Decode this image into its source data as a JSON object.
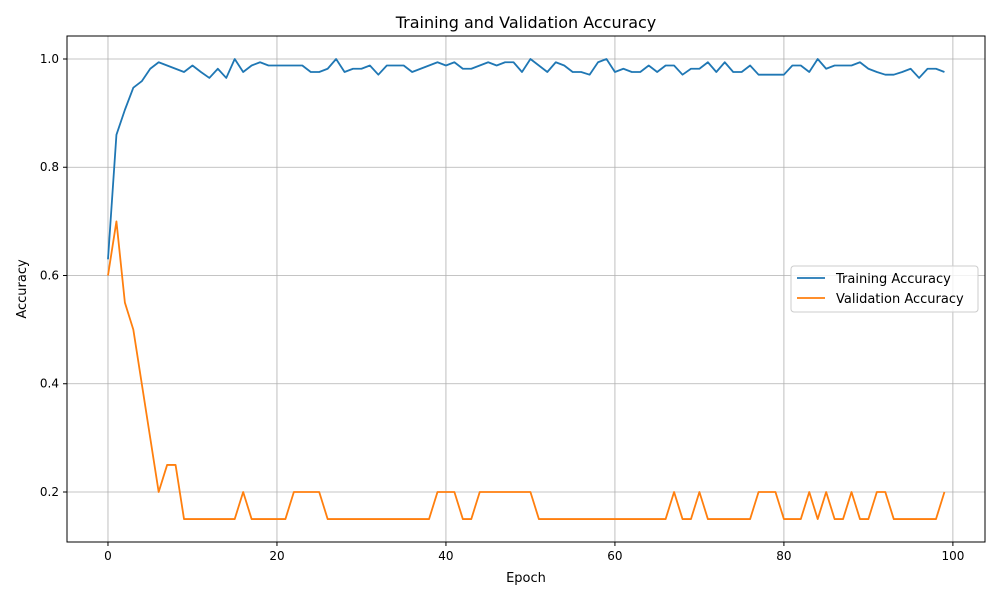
{
  "chart_data": {
    "type": "line",
    "title": "Training and Validation Accuracy",
    "xlabel": "Epoch",
    "ylabel": "Accuracy",
    "xlim": [
      -4.85,
      103.8
    ],
    "ylim": [
      0.1076,
      1.0425
    ],
    "xticks": [
      0,
      20,
      40,
      60,
      80,
      100
    ],
    "yticks": [
      0.2,
      0.4,
      0.6,
      0.8,
      1.0
    ],
    "xtick_labels": [
      "0",
      "20",
      "40",
      "60",
      "80",
      "100"
    ],
    "ytick_labels": [
      "0.2",
      "0.4",
      "0.6",
      "0.8",
      "1.0"
    ],
    "grid": true,
    "legend_position": "center-right",
    "series": [
      {
        "name": "Training Accuracy",
        "color": "#1f77b4",
        "values": [
          0.63,
          0.86,
          0.906,
          0.947,
          0.959,
          0.982,
          0.994,
          0.988,
          0.982,
          0.976,
          0.988,
          0.976,
          0.965,
          0.982,
          0.965,
          1.0,
          0.976,
          0.988,
          0.994,
          0.988,
          0.988,
          0.988,
          0.988,
          0.988,
          0.976,
          0.976,
          0.982,
          1.0,
          0.976,
          0.982,
          0.982,
          0.988,
          0.971,
          0.988,
          0.988,
          0.988,
          0.976,
          0.982,
          0.988,
          0.994,
          0.988,
          0.994,
          0.982,
          0.982,
          0.988,
          0.994,
          0.988,
          0.994,
          0.994,
          0.976,
          1.0,
          0.988,
          0.976,
          0.994,
          0.988,
          0.976,
          0.976,
          0.971,
          0.994,
          1.0,
          0.976,
          0.982,
          0.976,
          0.976,
          0.988,
          0.976,
          0.988,
          0.988,
          0.971,
          0.982,
          0.982,
          0.994,
          0.976,
          0.994,
          0.976,
          0.976,
          0.988,
          0.971,
          0.971,
          0.971,
          0.971,
          0.988,
          0.988,
          0.976,
          1.0,
          0.982,
          0.988,
          0.988,
          0.988,
          0.994,
          0.982,
          0.976,
          0.971,
          0.971,
          0.976,
          0.982,
          0.965,
          0.982,
          0.982,
          0.976
        ]
      },
      {
        "name": "Validation Accuracy",
        "color": "#ff7f0e",
        "values": [
          0.6,
          0.7,
          0.55,
          0.5,
          0.4,
          0.3,
          0.2,
          0.25,
          0.25,
          0.15,
          0.15,
          0.15,
          0.15,
          0.15,
          0.15,
          0.15,
          0.2,
          0.15,
          0.15,
          0.15,
          0.15,
          0.15,
          0.2,
          0.2,
          0.2,
          0.2,
          0.15,
          0.15,
          0.15,
          0.15,
          0.15,
          0.15,
          0.15,
          0.15,
          0.15,
          0.15,
          0.15,
          0.15,
          0.15,
          0.2,
          0.2,
          0.2,
          0.15,
          0.15,
          0.2,
          0.2,
          0.2,
          0.2,
          0.2,
          0.2,
          0.2,
          0.15,
          0.15,
          0.15,
          0.15,
          0.15,
          0.15,
          0.15,
          0.15,
          0.15,
          0.15,
          0.15,
          0.15,
          0.15,
          0.15,
          0.15,
          0.15,
          0.2,
          0.15,
          0.15,
          0.2,
          0.15,
          0.15,
          0.15,
          0.15,
          0.15,
          0.15,
          0.2,
          0.2,
          0.2,
          0.15,
          0.15,
          0.15,
          0.2,
          0.15,
          0.2,
          0.15,
          0.15,
          0.2,
          0.15,
          0.15,
          0.2,
          0.2,
          0.15,
          0.15,
          0.15,
          0.15,
          0.15,
          0.15,
          0.2
        ]
      }
    ]
  }
}
